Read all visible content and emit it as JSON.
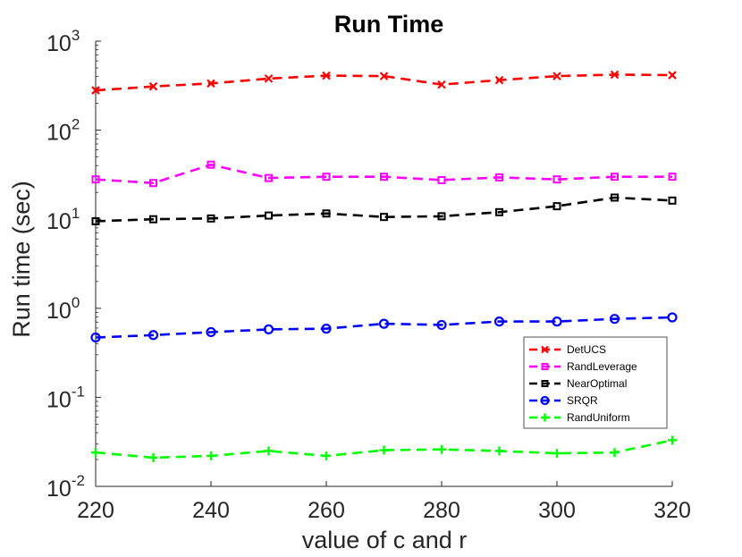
{
  "chart_data": {
    "type": "line",
    "title": "Run Time",
    "xlabel": "value of c and r",
    "ylabel": "Run time (sec)",
    "yscale": "log",
    "xlim": [
      220,
      320
    ],
    "ylim": [
      0.01,
      1000
    ],
    "xticks": [
      "220",
      "240",
      "260",
      "280",
      "300",
      "320"
    ],
    "ytick_base": "10",
    "ytick_exponents": [
      "-2",
      "-1",
      "0",
      "1",
      "2",
      "3"
    ],
    "x": [
      220,
      230,
      240,
      250,
      260,
      270,
      280,
      290,
      300,
      310,
      320
    ],
    "legend_position": "lower-right",
    "series": [
      {
        "name": "DetUCS",
        "color": "#ff0000",
        "marker": "x",
        "values": [
          280,
          310,
          335,
          380,
          410,
          405,
          325,
          365,
          405,
          420,
          415
        ]
      },
      {
        "name": "RandLeverage",
        "color": "#ff00ff",
        "marker": "square",
        "values": [
          28,
          25.5,
          41,
          29,
          30,
          30,
          27.5,
          29.5,
          28,
          30,
          30
        ]
      },
      {
        "name": "NearOptimal",
        "color": "#000000",
        "marker": "square",
        "values": [
          9.5,
          10,
          10.2,
          11,
          11.6,
          10.6,
          10.8,
          12,
          14,
          17.5,
          16.2
        ]
      },
      {
        "name": "SRQR",
        "color": "#0000ff",
        "marker": "circle",
        "values": [
          0.47,
          0.5,
          0.54,
          0.58,
          0.59,
          0.67,
          0.65,
          0.71,
          0.71,
          0.76,
          0.79
        ]
      },
      {
        "name": "RandUniform",
        "color": "#00ff00",
        "marker": "plus",
        "values": [
          0.024,
          0.021,
          0.022,
          0.025,
          0.022,
          0.0255,
          0.026,
          0.025,
          0.0235,
          0.024,
          0.033
        ]
      }
    ]
  }
}
